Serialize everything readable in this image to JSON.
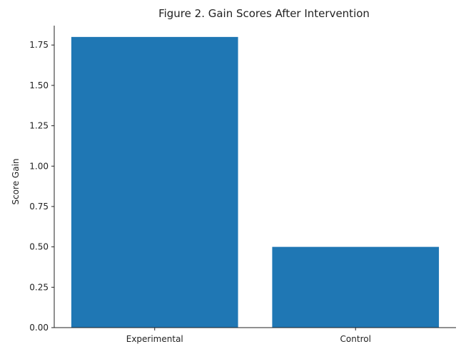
{
  "chart_data": {
    "type": "bar",
    "title": "Figure 2. Gain Scores After Intervention",
    "xlabel": "",
    "ylabel": "Score Gain",
    "categories": [
      "Experimental",
      "Control"
    ],
    "values": [
      1.8,
      0.5
    ],
    "ylim": [
      0,
      1.87
    ],
    "yticks": [
      0.0,
      0.25,
      0.5,
      0.75,
      1.0,
      1.25,
      1.5,
      1.75
    ],
    "ytick_labels": [
      "0.00",
      "0.25",
      "0.50",
      "0.75",
      "1.00",
      "1.25",
      "1.50",
      "1.75"
    ],
    "bar_color": "#1f77b4",
    "grid": false,
    "legend": "none"
  }
}
